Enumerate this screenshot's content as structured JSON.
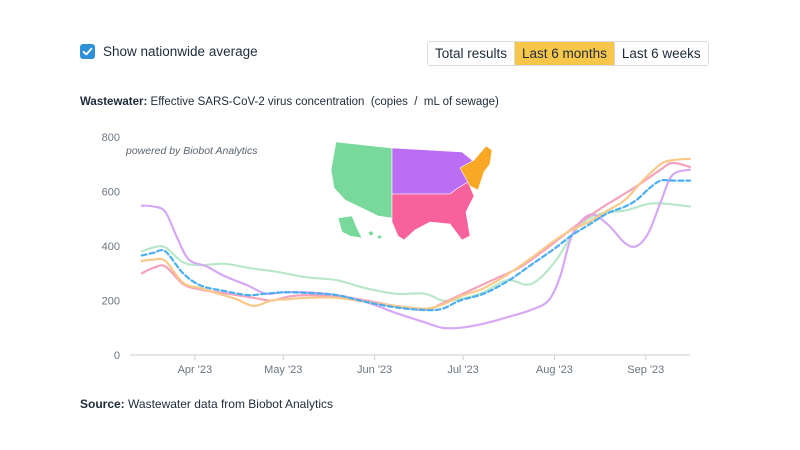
{
  "controls": {
    "checkbox_label": "Show nationwide average",
    "checkbox_checked": true,
    "tabs": [
      {
        "label": "Total results",
        "active": false
      },
      {
        "label": "Last 6 months",
        "active": true
      },
      {
        "label": "Last 6 weeks",
        "active": false
      }
    ]
  },
  "title_bold": "Wastewater:",
  "title_rest": " Effective SARS-CoV-2 virus concentration  (copies  /  mL of sewage)",
  "source_bold": "Source:",
  "source_rest": " Wastewater data from Biobot Analytics",
  "watermark": "powered by Biobot Analytics",
  "region_colors": {
    "west": "#79d89b",
    "midwest": "#bb6df4",
    "south": "#f8629c",
    "northeast": "#f9a825"
  },
  "chart_data": {
    "type": "line",
    "title": "Wastewater: Effective SARS-CoV-2 virus concentration (copies / mL of sewage)",
    "xlabel": "",
    "ylabel": "",
    "ylim": [
      0,
      800
    ],
    "yticks": [
      0,
      200,
      400,
      600,
      800
    ],
    "xlim": [
      0,
      190
    ],
    "xticks": [
      {
        "label": "Apr '23",
        "day": 22
      },
      {
        "label": "May '23",
        "day": 52
      },
      {
        "label": "Jun '23",
        "day": 83
      },
      {
        "label": "Jul '23",
        "day": 113
      },
      {
        "label": "Aug '23",
        "day": 144
      },
      {
        "label": "Sep '23",
        "day": 175
      }
    ],
    "grid": "none",
    "series": [
      {
        "name": "West",
        "color": "#b8e8c8",
        "dashed": false,
        "x": [
          4,
          8,
          12,
          18,
          24,
          32,
          40,
          50,
          60,
          70,
          80,
          90,
          100,
          106,
          112,
          120,
          128,
          136,
          144,
          152,
          160,
          168,
          176,
          182,
          190
        ],
        "y": [
          380,
          395,
          395,
          340,
          330,
          335,
          320,
          305,
          285,
          275,
          245,
          225,
          225,
          200,
          205,
          230,
          275,
          260,
          340,
          470,
          520,
          530,
          555,
          555,
          545
        ]
      },
      {
        "name": "Midwest",
        "color": "#d7a8f5",
        "dashed": false,
        "x": [
          4,
          8,
          12,
          16,
          20,
          26,
          32,
          40,
          46,
          52,
          60,
          70,
          80,
          90,
          100,
          106,
          112,
          120,
          130,
          136,
          142,
          146,
          150,
          156,
          162,
          168,
          172,
          176,
          180,
          184,
          190
        ],
        "y": [
          548,
          545,
          525,
          430,
          350,
          325,
          290,
          255,
          225,
          230,
          230,
          220,
          195,
          155,
          120,
          100,
          100,
          115,
          145,
          165,
          200,
          290,
          440,
          515,
          480,
          410,
          400,
          450,
          560,
          660,
          680
        ]
      },
      {
        "name": "South",
        "color": "#f5a3bd",
        "dashed": false,
        "x": [
          4,
          8,
          12,
          18,
          24,
          30,
          36,
          42,
          48,
          54,
          60,
          70,
          80,
          90,
          100,
          106,
          110,
          116,
          124,
          132,
          140,
          146,
          152,
          160,
          166,
          172,
          176,
          180,
          184,
          190
        ],
        "y": [
          300,
          320,
          325,
          260,
          240,
          230,
          220,
          210,
          200,
          215,
          220,
          215,
          200,
          180,
          165,
          190,
          210,
          240,
          280,
          320,
          380,
          430,
          480,
          540,
          580,
          620,
          650,
          680,
          705,
          690
        ]
      },
      {
        "name": "Northeast",
        "color": "#f9c98a",
        "dashed": false,
        "x": [
          4,
          8,
          12,
          18,
          24,
          30,
          36,
          42,
          48,
          54,
          60,
          70,
          80,
          90,
          100,
          106,
          112,
          120,
          128,
          136,
          144,
          150,
          156,
          162,
          168,
          174,
          180,
          184,
          190
        ],
        "y": [
          345,
          350,
          345,
          265,
          245,
          225,
          205,
          180,
          200,
          205,
          210,
          210,
          195,
          180,
          170,
          185,
          215,
          245,
          295,
          355,
          420,
          460,
          490,
          530,
          570,
          640,
          700,
          715,
          720
        ]
      },
      {
        "name": "Nationwide average",
        "color": "#4aaef0",
        "dashed": true,
        "x": [
          4,
          8,
          12,
          18,
          24,
          32,
          40,
          46,
          52,
          60,
          70,
          80,
          90,
          100,
          106,
          112,
          120,
          128,
          136,
          144,
          150,
          156,
          162,
          168,
          172,
          176,
          180,
          184,
          190
        ],
        "y": [
          365,
          375,
          380,
          300,
          255,
          235,
          220,
          225,
          230,
          228,
          220,
          195,
          175,
          165,
          170,
          200,
          225,
          270,
          330,
          390,
          440,
          480,
          520,
          545,
          570,
          610,
          640,
          640,
          640
        ]
      }
    ]
  }
}
